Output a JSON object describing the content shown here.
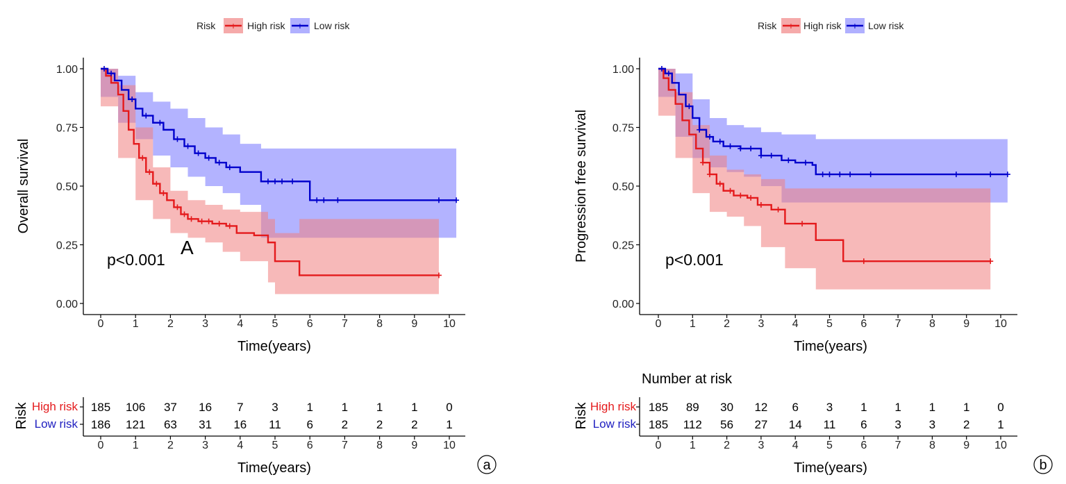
{
  "chart_data": [
    {
      "type": "line",
      "panel_label": "a",
      "annotation": "A",
      "ylabel": "Overall survival",
      "xlabel": "Time(years)",
      "xlim": [
        0,
        10
      ],
      "ylim": [
        0,
        1
      ],
      "x_ticks": [
        "0",
        "1",
        "2",
        "3",
        "4",
        "5",
        "6",
        "7",
        "8",
        "9",
        "10"
      ],
      "y_ticks": [
        "0.00",
        "0.25",
        "0.50",
        "0.75",
        "1.00"
      ],
      "legend": {
        "title": "Risk",
        "items": [
          "High risk",
          "Low risk"
        ],
        "position": "top"
      },
      "p_value": "p<0.001",
      "colors": {
        "high": "#e41a1c",
        "low": "#0000cc",
        "high_band": "#f08080",
        "low_band": "#8080ff"
      },
      "series": [
        {
          "name": "High risk",
          "steps": [
            [
              0,
              1.0
            ],
            [
              0.15,
              0.97
            ],
            [
              0.3,
              0.94
            ],
            [
              0.5,
              0.89
            ],
            [
              0.65,
              0.82
            ],
            [
              0.8,
              0.74
            ],
            [
              0.95,
              0.68
            ],
            [
              1.1,
              0.62
            ],
            [
              1.3,
              0.56
            ],
            [
              1.5,
              0.51
            ],
            [
              1.7,
              0.47
            ],
            [
              1.9,
              0.44
            ],
            [
              2.1,
              0.41
            ],
            [
              2.3,
              0.38
            ],
            [
              2.5,
              0.36
            ],
            [
              2.8,
              0.35
            ],
            [
              3.2,
              0.34
            ],
            [
              3.6,
              0.33
            ],
            [
              3.9,
              0.3
            ],
            [
              4.4,
              0.29
            ],
            [
              4.8,
              0.26
            ],
            [
              5.0,
              0.18
            ],
            [
              5.7,
              0.12
            ],
            [
              9.7,
              0.12
            ]
          ],
          "ci_lower": [
            [
              0,
              0.98
            ],
            [
              0.5,
              0.84
            ],
            [
              1.0,
              0.62
            ],
            [
              1.5,
              0.44
            ],
            [
              2.0,
              0.36
            ],
            [
              2.5,
              0.3
            ],
            [
              3.0,
              0.28
            ],
            [
              3.5,
              0.26
            ],
            [
              4.0,
              0.22
            ],
            [
              4.8,
              0.18
            ],
            [
              5.0,
              0.09
            ],
            [
              5.7,
              0.04
            ],
            [
              9.7,
              0.04
            ]
          ],
          "ci_upper": [
            [
              0,
              1.0
            ],
            [
              0.5,
              0.93
            ],
            [
              1.0,
              0.75
            ],
            [
              1.5,
              0.58
            ],
            [
              2.0,
              0.48
            ],
            [
              2.5,
              0.44
            ],
            [
              3.0,
              0.42
            ],
            [
              3.5,
              0.4
            ],
            [
              4.0,
              0.39
            ],
            [
              4.8,
              0.36
            ],
            [
              5.0,
              0.3
            ],
            [
              5.7,
              0.36
            ],
            [
              9.7,
              0.36
            ]
          ],
          "censor_x": [
            1.2,
            1.4,
            1.6,
            1.8,
            2.2,
            2.4,
            2.6,
            2.9,
            3.1,
            3.4,
            3.7,
            9.7
          ]
        },
        {
          "name": "Low risk",
          "steps": [
            [
              0,
              1.0
            ],
            [
              0.2,
              0.98
            ],
            [
              0.4,
              0.95
            ],
            [
              0.6,
              0.91
            ],
            [
              0.8,
              0.87
            ],
            [
              1.0,
              0.83
            ],
            [
              1.2,
              0.8
            ],
            [
              1.5,
              0.77
            ],
            [
              1.8,
              0.74
            ],
            [
              2.1,
              0.7
            ],
            [
              2.4,
              0.67
            ],
            [
              2.7,
              0.64
            ],
            [
              3.0,
              0.62
            ],
            [
              3.3,
              0.6
            ],
            [
              3.6,
              0.58
            ],
            [
              4.0,
              0.56
            ],
            [
              4.6,
              0.52
            ],
            [
              6.0,
              0.44
            ],
            [
              10.2,
              0.44
            ]
          ],
          "ci_lower": [
            [
              0,
              0.99
            ],
            [
              0.5,
              0.88
            ],
            [
              1.0,
              0.77
            ],
            [
              1.5,
              0.7
            ],
            [
              2.0,
              0.63
            ],
            [
              2.5,
              0.58
            ],
            [
              3.0,
              0.54
            ],
            [
              3.5,
              0.5
            ],
            [
              4.0,
              0.47
            ],
            [
              4.6,
              0.42
            ],
            [
              6.0,
              0.28
            ],
            [
              10.2,
              0.28
            ]
          ],
          "ci_upper": [
            [
              0,
              1.0
            ],
            [
              0.5,
              0.97
            ],
            [
              1.0,
              0.9
            ],
            [
              1.5,
              0.86
            ],
            [
              2.0,
              0.83
            ],
            [
              2.5,
              0.79
            ],
            [
              3.0,
              0.75
            ],
            [
              3.5,
              0.72
            ],
            [
              4.0,
              0.68
            ],
            [
              4.6,
              0.66
            ],
            [
              6.0,
              0.66
            ],
            [
              10.2,
              0.66
            ]
          ],
          "censor_x": [
            0.1,
            0.3,
            0.9,
            1.3,
            1.7,
            2.2,
            2.5,
            2.8,
            3.1,
            3.4,
            3.7,
            4.8,
            5.0,
            5.2,
            5.5,
            6.2,
            6.4,
            6.8,
            9.7,
            10.2
          ]
        }
      ],
      "risk_table": {
        "title": "",
        "row_label": "Risk",
        "rows": [
          {
            "name": "High risk",
            "values": [
              "185",
              "106",
              "37",
              "16",
              "7",
              "3",
              "1",
              "1",
              "1",
              "1",
              "0"
            ]
          },
          {
            "name": "Low risk",
            "values": [
              "186",
              "121",
              "63",
              "31",
              "16",
              "11",
              "6",
              "2",
              "2",
              "2",
              "1"
            ]
          }
        ],
        "xlabel": "Time(years)"
      }
    },
    {
      "type": "line",
      "panel_label": "b",
      "annotation": "",
      "ylabel": "Progression free survival",
      "xlabel": "Time(years)",
      "xlim": [
        0,
        10
      ],
      "ylim": [
        0,
        1
      ],
      "x_ticks": [
        "0",
        "1",
        "2",
        "3",
        "4",
        "5",
        "6",
        "7",
        "8",
        "9",
        "10"
      ],
      "y_ticks": [
        "0.00",
        "0.25",
        "0.50",
        "0.75",
        "1.00"
      ],
      "legend": {
        "title": "Risk",
        "items": [
          "High risk",
          "Low risk"
        ],
        "position": "top"
      },
      "p_value": "p<0.001",
      "colors": {
        "high": "#e41a1c",
        "low": "#0000cc",
        "high_band": "#f08080",
        "low_band": "#8080ff"
      },
      "series": [
        {
          "name": "High risk",
          "steps": [
            [
              0,
              1.0
            ],
            [
              0.15,
              0.96
            ],
            [
              0.3,
              0.91
            ],
            [
              0.5,
              0.85
            ],
            [
              0.7,
              0.78
            ],
            [
              0.9,
              0.72
            ],
            [
              1.1,
              0.66
            ],
            [
              1.3,
              0.6
            ],
            [
              1.5,
              0.55
            ],
            [
              1.7,
              0.51
            ],
            [
              1.9,
              0.48
            ],
            [
              2.2,
              0.46
            ],
            [
              2.6,
              0.45
            ],
            [
              2.9,
              0.42
            ],
            [
              3.3,
              0.4
            ],
            [
              3.7,
              0.34
            ],
            [
              4.6,
              0.27
            ],
            [
              5.4,
              0.18
            ],
            [
              9.7,
              0.18
            ]
          ],
          "ci_lower": [
            [
              0,
              0.98
            ],
            [
              0.5,
              0.8
            ],
            [
              1.0,
              0.62
            ],
            [
              1.5,
              0.47
            ],
            [
              2.0,
              0.39
            ],
            [
              2.5,
              0.37
            ],
            [
              3.0,
              0.33
            ],
            [
              3.7,
              0.24
            ],
            [
              4.6,
              0.15
            ],
            [
              5.4,
              0.06
            ],
            [
              9.7,
              0.06
            ]
          ],
          "ci_upper": [
            [
              0,
              1.0
            ],
            [
              0.5,
              0.9
            ],
            [
              1.0,
              0.76
            ],
            [
              1.5,
              0.63
            ],
            [
              2.0,
              0.57
            ],
            [
              2.5,
              0.55
            ],
            [
              3.0,
              0.53
            ],
            [
              3.7,
              0.49
            ],
            [
              4.6,
              0.49
            ],
            [
              5.4,
              0.49
            ],
            [
              9.7,
              0.49
            ]
          ],
          "censor_x": [
            1.3,
            1.5,
            1.8,
            2.1,
            2.4,
            2.7,
            3.0,
            3.5,
            4.2,
            6.0,
            9.7
          ]
        },
        {
          "name": "Low risk",
          "steps": [
            [
              0,
              1.0
            ],
            [
              0.2,
              0.98
            ],
            [
              0.4,
              0.94
            ],
            [
              0.6,
              0.89
            ],
            [
              0.8,
              0.84
            ],
            [
              1.0,
              0.79
            ],
            [
              1.2,
              0.74
            ],
            [
              1.4,
              0.71
            ],
            [
              1.6,
              0.69
            ],
            [
              1.9,
              0.67
            ],
            [
              2.4,
              0.66
            ],
            [
              3.0,
              0.63
            ],
            [
              3.6,
              0.61
            ],
            [
              4.0,
              0.6
            ],
            [
              4.5,
              0.59
            ],
            [
              4.6,
              0.55
            ],
            [
              10.2,
              0.55
            ]
          ],
          "ci_lower": [
            [
              0,
              0.99
            ],
            [
              0.5,
              0.88
            ],
            [
              1.0,
              0.71
            ],
            [
              1.5,
              0.62
            ],
            [
              2.0,
              0.58
            ],
            [
              2.5,
              0.56
            ],
            [
              3.0,
              0.54
            ],
            [
              3.6,
              0.5
            ],
            [
              4.6,
              0.43
            ],
            [
              10.2,
              0.43
            ]
          ],
          "ci_upper": [
            [
              0,
              1.0
            ],
            [
              0.5,
              0.98
            ],
            [
              1.0,
              0.87
            ],
            [
              1.5,
              0.79
            ],
            [
              2.0,
              0.76
            ],
            [
              2.5,
              0.75
            ],
            [
              3.0,
              0.73
            ],
            [
              3.6,
              0.72
            ],
            [
              4.6,
              0.7
            ],
            [
              10.2,
              0.7
            ]
          ],
          "censor_x": [
            0.1,
            0.3,
            0.9,
            1.2,
            1.5,
            1.8,
            2.1,
            2.4,
            2.7,
            3.0,
            3.3,
            3.8,
            4.3,
            4.8,
            5.0,
            5.3,
            5.6,
            6.2,
            8.7,
            9.7,
            10.2
          ]
        }
      ],
      "risk_table": {
        "title": "Number at risk",
        "row_label": "Risk",
        "rows": [
          {
            "name": "High risk",
            "values": [
              "185",
              "89",
              "30",
              "12",
              "6",
              "3",
              "1",
              "1",
              "1",
              "1",
              "0"
            ]
          },
          {
            "name": "Low risk",
            "values": [
              "185",
              "112",
              "56",
              "27",
              "14",
              "11",
              "6",
              "3",
              "3",
              "2",
              "1"
            ]
          }
        ],
        "xlabel": "Time(years)"
      }
    }
  ]
}
